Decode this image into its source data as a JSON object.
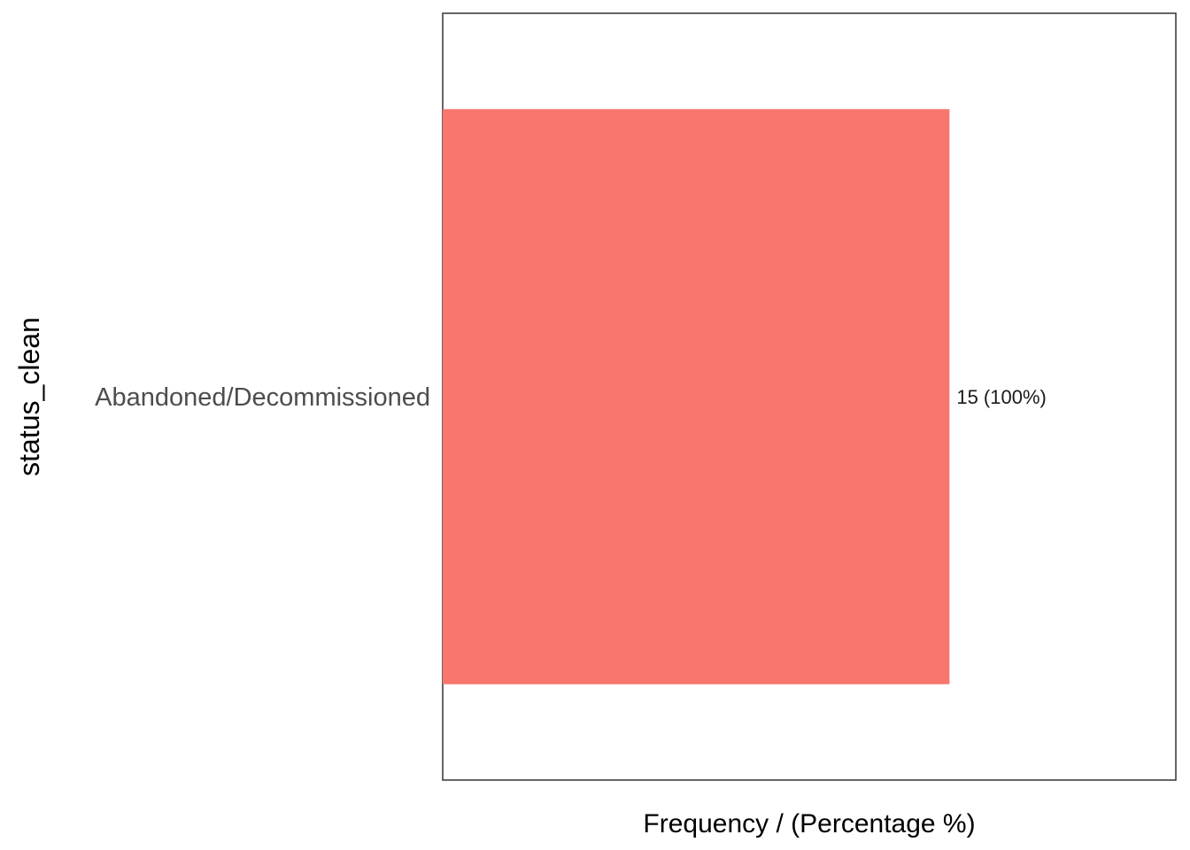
{
  "chart_data": {
    "type": "bar",
    "orientation": "horizontal",
    "title": "",
    "xlabel": "Frequency / (Percentage %)",
    "ylabel": "status_clean",
    "categories": [
      "Abandoned/Decommissioned"
    ],
    "values": [
      15
    ],
    "data_labels": [
      "15 (100%)"
    ],
    "xlim": [
      0,
      21.7
    ],
    "x_ticks_visible": false,
    "grid": false,
    "legend": "none",
    "bar_color": "#F8766D"
  }
}
